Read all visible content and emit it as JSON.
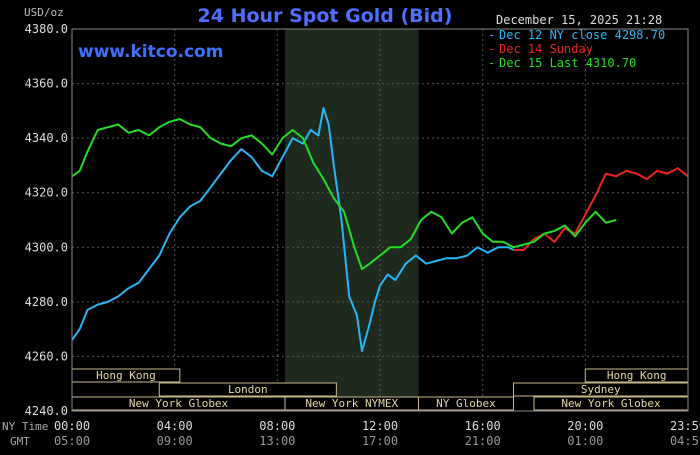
{
  "chart_data": {
    "type": "line",
    "title": "24 Hour Spot Gold (Bid)",
    "ylabel": "USD/oz",
    "site": "www.kitco.com",
    "date_label": "December 15, 2025 21:28",
    "ylim": [
      4240,
      4380
    ],
    "yticks": [
      "4380.0",
      "4360.0",
      "4340.0",
      "4320.0",
      "4300.0",
      "4280.0",
      "4260.0",
      "4240.0"
    ],
    "ytick_values": [
      4380,
      4360,
      4340,
      4320,
      4300,
      4280,
      4260,
      4240
    ],
    "xlim": [
      0,
      24
    ],
    "xticks": [
      {
        "t": 0,
        "ny": "00:00",
        "gmt": "05:00"
      },
      {
        "t": 4,
        "ny": "04:00",
        "gmt": "09:00"
      },
      {
        "t": 8,
        "ny": "08:00",
        "gmt": "13:00"
      },
      {
        "t": 12,
        "ny": "12:00",
        "gmt": "17:00"
      },
      {
        "t": 16,
        "ny": "16:00",
        "gmt": "21:00"
      },
      {
        "t": 20,
        "ny": "20:00",
        "gmt": "01:00"
      },
      {
        "t": 24,
        "ny": "23:59",
        "gmt": "04:59"
      }
    ],
    "xrow_labels": {
      "ny": "NY Time",
      "gmt": "GMT"
    },
    "highlight": {
      "start": 8.3,
      "end": 13.5
    },
    "series": [
      {
        "name": "Dec 12 NY close 4298.70",
        "color": "#29b6f6",
        "x": [
          0,
          0.3,
          0.6,
          1,
          1.4,
          1.8,
          2.2,
          2.6,
          3,
          3.4,
          3.8,
          4.2,
          4.6,
          5,
          5.4,
          5.8,
          6.2,
          6.6,
          7,
          7.4,
          7.8,
          8.2,
          8.6,
          9,
          9.3,
          9.6,
          9.8,
          10,
          10.2,
          10.5,
          10.8,
          11.1,
          11.3,
          11.6,
          11.8,
          12,
          12.3,
          12.6,
          13,
          13.4,
          13.8,
          14.2,
          14.6,
          15,
          15.4,
          15.8,
          16.2,
          16.6,
          17,
          17.2
        ],
        "y": [
          4266,
          4270,
          4277,
          4279,
          4280,
          4282,
          4285,
          4287,
          4292,
          4297,
          4305,
          4311,
          4315,
          4317,
          4322,
          4327,
          4332,
          4336,
          4333,
          4328,
          4326,
          4333,
          4340,
          4338,
          4343,
          4341,
          4351,
          4345,
          4330,
          4310,
          4282,
          4275,
          4262,
          4272,
          4280,
          4286,
          4290,
          4288,
          4294,
          4297,
          4294,
          4295,
          4296,
          4296,
          4297,
          4300,
          4298,
          4300,
          4300,
          4299
        ]
      },
      {
        "name": "Dec 14 Sunday",
        "color": "#ee2222",
        "x": [
          17.2,
          17.6,
          18,
          18.4,
          18.8,
          19.2,
          19.6,
          20,
          20.4,
          20.8,
          21.2,
          21.6,
          22,
          22.4,
          22.8,
          23.2,
          23.6,
          24
        ],
        "y": [
          4299,
          4299,
          4303,
          4305,
          4302,
          4307,
          4305,
          4312,
          4319,
          4327,
          4326,
          4328,
          4327,
          4325,
          4328,
          4327,
          4329,
          4326
        ]
      },
      {
        "name": "Dec 15 Last 4310.70",
        "color": "#22dd22",
        "x": [
          0,
          0.3,
          0.6,
          1,
          1.4,
          1.8,
          2.2,
          2.6,
          3,
          3.4,
          3.8,
          4.2,
          4.6,
          5,
          5.4,
          5.8,
          6.2,
          6.6,
          7,
          7.4,
          7.8,
          8.2,
          8.6,
          9,
          9.4,
          9.8,
          10.2,
          10.6,
          11,
          11.3,
          11.6,
          12,
          12.4,
          12.8,
          13.2,
          13.6,
          14,
          14.4,
          14.8,
          15.2,
          15.6,
          16,
          16.4,
          16.8,
          17.2,
          17.6,
          18,
          18.4,
          18.8,
          19.2,
          19.6,
          20,
          20.4,
          20.8,
          21.2
        ],
        "y": [
          4326,
          4328,
          4335,
          4343,
          4344,
          4345,
          4342,
          4343,
          4341,
          4344,
          4346,
          4347,
          4345,
          4344,
          4340,
          4338,
          4337,
          4340,
          4341,
          4338,
          4334,
          4340,
          4343,
          4340,
          4331,
          4325,
          4318,
          4313,
          4300,
          4292,
          4294,
          4297,
          4300,
          4300,
          4303,
          4310,
          4313,
          4311,
          4305,
          4309,
          4311,
          4305,
          4302,
          4302,
          4300,
          4301,
          4302,
          4305,
          4306,
          4308,
          4304,
          4309,
          4313,
          4309,
          4310
        ]
      }
    ],
    "sessions": [
      {
        "label": "Hong Kong",
        "t1": 0,
        "t2": 4.2,
        "row": 0
      },
      {
        "label": "Hong Kong",
        "t1": 20,
        "t2": 24,
        "row": 0
      },
      {
        "label": "London",
        "t1": 3.4,
        "t2": 10.3,
        "row": 1
      },
      {
        "label": "Sydney",
        "t1": 17.2,
        "t2": 24,
        "row": 1
      },
      {
        "label": "New York Globex",
        "t1": 0,
        "t2": 8.3,
        "row": 2
      },
      {
        "label": "New York NYMEX",
        "t1": 8.3,
        "t2": 13.5,
        "row": 2
      },
      {
        "label": "NY Globex",
        "t1": 13.5,
        "t2": 17.2,
        "row": 2
      },
      {
        "label": "New York Globex",
        "t1": 18,
        "t2": 24,
        "row": 2
      }
    ]
  }
}
